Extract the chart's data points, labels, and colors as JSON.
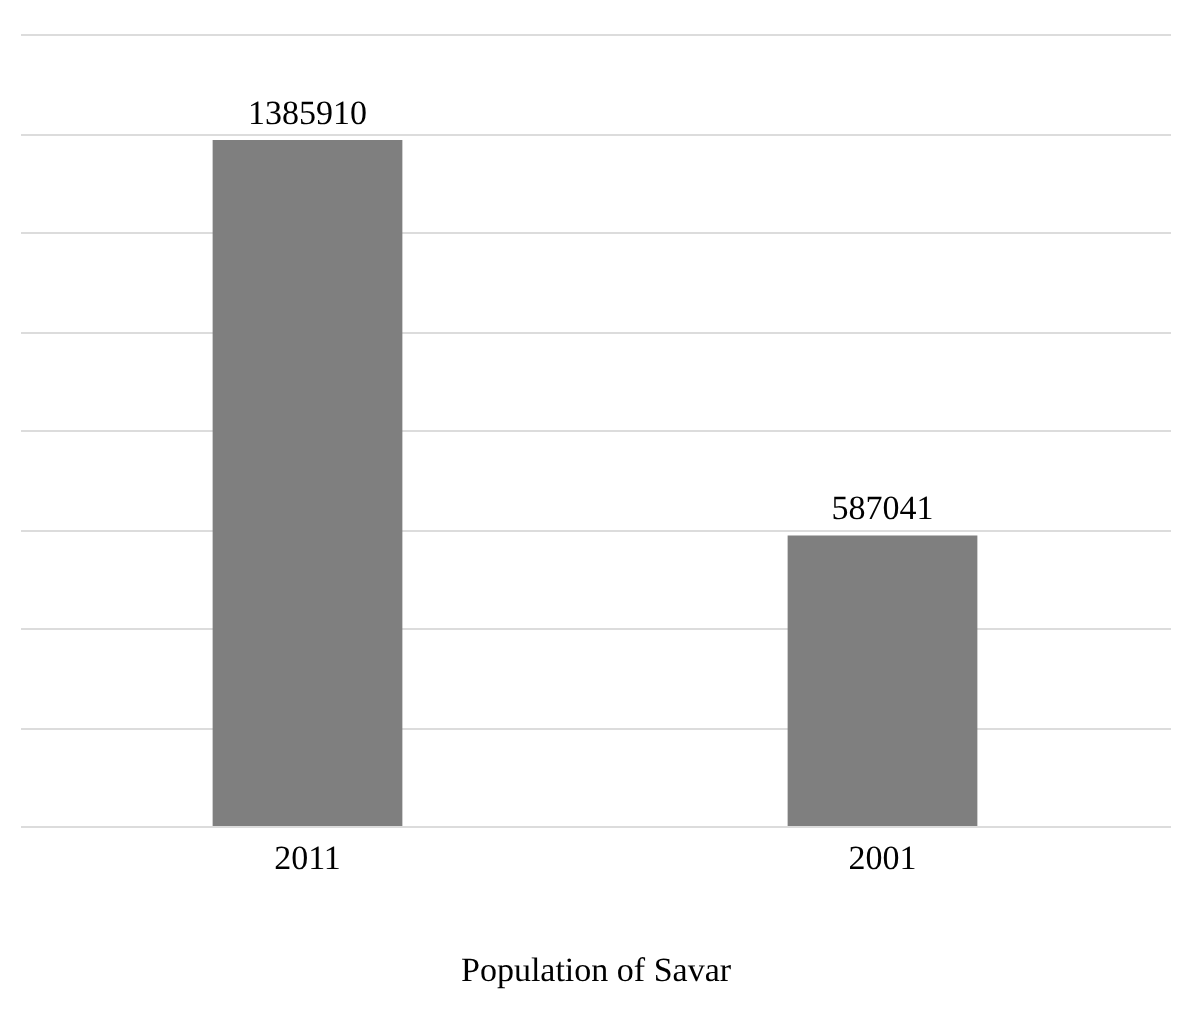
{
  "chart_data": {
    "type": "bar",
    "xlabel": "Population of Savar",
    "categories": [
      "2011",
      "2001"
    ],
    "values": [
      1385910,
      587041
    ],
    "color": "#7f7f7f",
    "ylim": [
      0,
      1600000
    ],
    "yticks": [
      {
        "value": 0,
        "label": null
      },
      {
        "value": 200000,
        "label": null
      },
      {
        "value": 400000,
        "label": null
      },
      {
        "value": 600000,
        "label": null
      },
      {
        "value": 800000,
        "label": null
      },
      {
        "value": 1000000,
        "label": null
      },
      {
        "value": 1200000,
        "label": null
      },
      {
        "value": 1400000,
        "label": null
      },
      {
        "value": 1600000,
        "label": null
      }
    ],
    "grid": "y",
    "tick_labels": "x",
    "data_labels": true
  }
}
